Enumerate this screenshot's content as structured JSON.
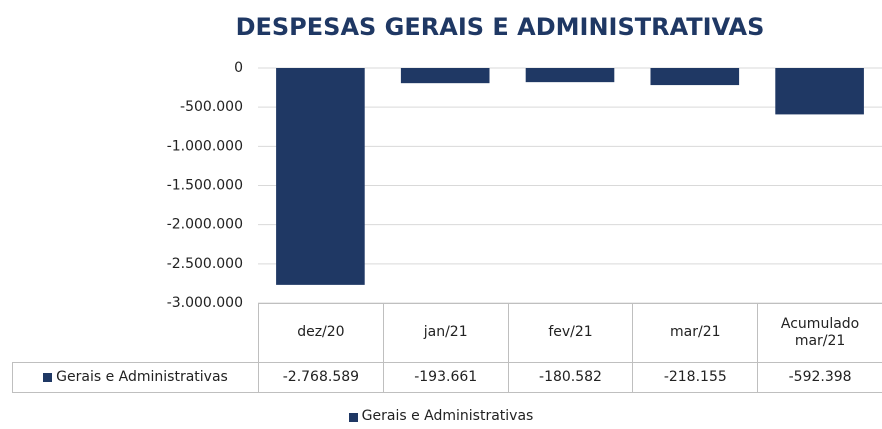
{
  "chart_data": {
    "type": "bar",
    "title": "DESPESAS  GERAIS E ADMINISTRATIVAS",
    "categories": [
      "dez/20",
      "jan/21",
      "fev/21",
      "mar/21",
      "Acumulado mar/21"
    ],
    "series": [
      {
        "name": "Gerais e Administrativas",
        "color": "#1f3864",
        "values": [
          -2768589,
          -193661,
          -180582,
          -218155,
          -592398
        ],
        "value_labels": [
          "-2.768.589",
          "-193.661",
          "-180.582",
          "-218.155",
          "-592.398"
        ]
      }
    ],
    "ylim": [
      -3000000,
      0
    ],
    "yticks": [
      0,
      {
        "value": -500000,
        "label": "-500.000"
      },
      {
        "value": -1000000,
        "label": "-1.000.000"
      },
      {
        "value": -1500000,
        "label": "-1.500.000"
      },
      {
        "value": -2000000,
        "label": "-2.000.000"
      },
      {
        "value": -2500000,
        "label": "-2.500.000"
      },
      {
        "value": -3000000,
        "label": "-3.000.000"
      }
    ],
    "grid": true,
    "legend": "bottom"
  }
}
